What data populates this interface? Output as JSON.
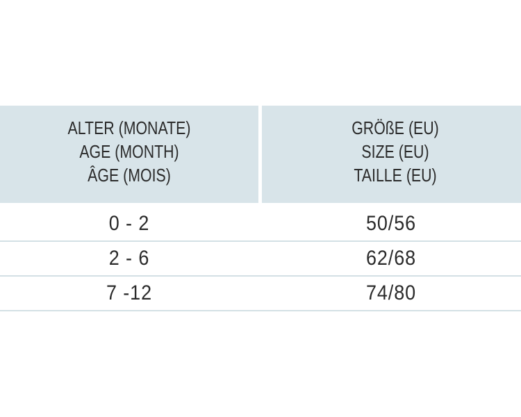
{
  "table": {
    "headers": [
      [
        "ALTER (MONATE)",
        "AGE (MONTH)",
        "ÂGE (MOIS)"
      ],
      [
        "GRÖßE (EU)",
        "SIZE (EU)",
        "TAILLE (EU)"
      ]
    ],
    "rows": [
      [
        "0 - 2",
        "50/56"
      ],
      [
        "2 - 6",
        "62/68"
      ],
      [
        "7 -12",
        "74/80"
      ]
    ]
  }
}
